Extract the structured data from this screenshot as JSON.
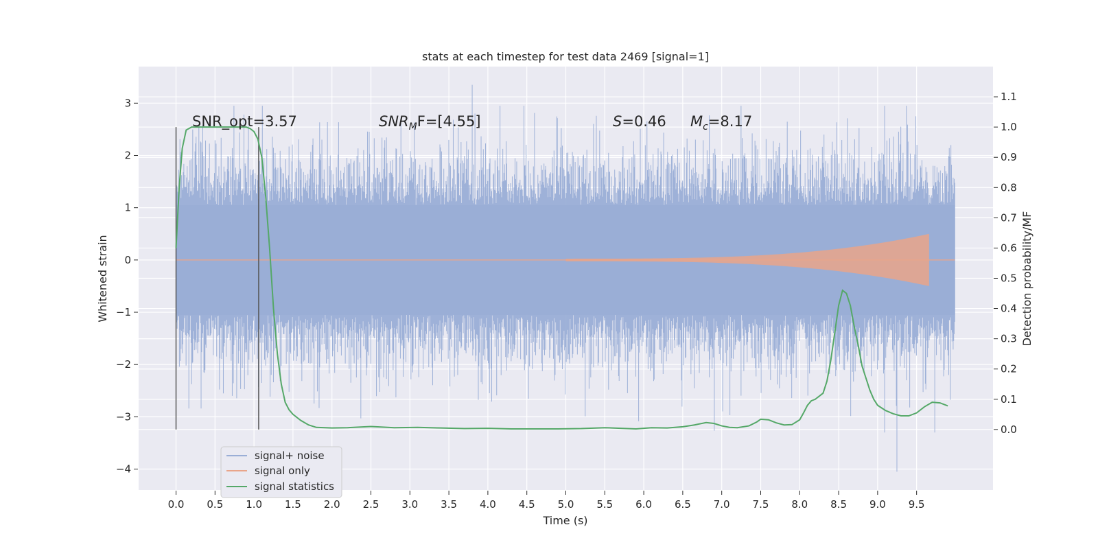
{
  "chart_data": {
    "type": "line",
    "title": "stats at each timestep for test data 2469 [signal=1]",
    "xlabel": "Time (s)",
    "ylabel": "Whitened strain",
    "y2label": "Detection probability/MF",
    "xlim": [
      -0.48,
      10.48
    ],
    "ylim": [
      -4.4,
      3.7
    ],
    "y2lim": [
      -0.2,
      1.2
    ],
    "xticks": [
      0.0,
      0.5,
      1.0,
      1.5,
      2.0,
      2.5,
      3.0,
      3.5,
      4.0,
      4.5,
      5.0,
      5.5,
      6.0,
      6.5,
      7.0,
      7.5,
      8.0,
      8.5,
      9.0,
      9.5
    ],
    "xtick_labels": [
      "0.0",
      "0.5",
      "1.0",
      "1.5",
      "2.0",
      "2.5",
      "3.0",
      "3.5",
      "4.0",
      "4.5",
      "5.0",
      "5.5",
      "6.0",
      "6.5",
      "7.0",
      "7.5",
      "8.0",
      "8.5",
      "9.0",
      "9.5"
    ],
    "yticks": [
      -4,
      -3,
      -2,
      -1,
      0,
      1,
      2,
      3
    ],
    "ytick_labels": [
      "−4",
      "−3",
      "−2",
      "−1",
      "0",
      "1",
      "2",
      "3"
    ],
    "y2ticks": [
      0.0,
      0.1,
      0.2,
      0.3,
      0.4,
      0.5,
      0.6,
      0.7,
      0.8,
      0.9,
      1.0,
      1.1
    ],
    "y2tick_labels": [
      "0.0",
      "0.1",
      "0.2",
      "0.3",
      "0.4",
      "0.5",
      "0.6",
      "0.7",
      "0.8",
      "0.9",
      "1.0",
      "1.1"
    ],
    "grid": true,
    "legend_position": "bottom-left",
    "colors": {
      "background": "#eaeaf2",
      "grid": "#ffffff",
      "noise": "#9aaed6",
      "signal": "#e9a58a",
      "statistics": "#55a868",
      "window_line": "#555555"
    },
    "series": [
      {
        "name": "signal+ noise",
        "axis": "left",
        "t_start": 0.0,
        "t_end": 9.99,
        "envelope_typical": [
          -1.6,
          1.6
        ],
        "envelope_peaks": [
          -4.05,
          3.35
        ]
      },
      {
        "name": "signal only",
        "axis": "left",
        "t_start": 0.0,
        "t_end": 9.99,
        "chirp_end_time": 9.66,
        "chirp_max_amplitude": 0.5
      },
      {
        "name": "signal statistics",
        "axis": "right",
        "x": [
          0.0,
          0.04,
          0.08,
          0.13,
          0.2,
          0.3,
          0.4,
          0.5,
          0.6,
          0.7,
          0.8,
          0.9,
          0.95,
          1.0,
          1.05,
          1.1,
          1.15,
          1.2,
          1.25,
          1.3,
          1.35,
          1.4,
          1.45,
          1.5,
          1.6,
          1.7,
          1.8,
          2.0,
          2.2,
          2.5,
          2.8,
          3.1,
          3.4,
          3.7,
          4.0,
          4.3,
          4.6,
          4.9,
          5.2,
          5.5,
          5.7,
          5.9,
          6.1,
          6.3,
          6.5,
          6.65,
          6.8,
          6.9,
          7.0,
          7.1,
          7.2,
          7.35,
          7.45,
          7.5,
          7.6,
          7.7,
          7.8,
          7.9,
          8.0,
          8.05,
          8.1,
          8.15,
          8.2,
          8.3,
          8.35,
          8.4,
          8.45,
          8.5,
          8.55,
          8.6,
          8.65,
          8.7,
          8.75,
          8.8,
          8.9,
          8.95,
          9.0,
          9.1,
          9.2,
          9.3,
          9.4,
          9.5,
          9.6,
          9.7,
          9.8,
          9.9
        ],
        "values": [
          0.6,
          0.8,
          0.93,
          0.99,
          1.0,
          1.0,
          1.0,
          1.0,
          1.0,
          1.0,
          1.0,
          1.0,
          0.995,
          0.985,
          0.96,
          0.9,
          0.77,
          0.6,
          0.4,
          0.25,
          0.15,
          0.09,
          0.065,
          0.05,
          0.03,
          0.015,
          0.007,
          0.005,
          0.006,
          0.01,
          0.006,
          0.007,
          0.005,
          0.003,
          0.004,
          0.002,
          0.002,
          0.002,
          0.003,
          0.006,
          0.004,
          0.002,
          0.006,
          0.005,
          0.009,
          0.015,
          0.023,
          0.02,
          0.012,
          0.007,
          0.006,
          0.012,
          0.025,
          0.034,
          0.032,
          0.022,
          0.015,
          0.016,
          0.032,
          0.055,
          0.08,
          0.095,
          0.1,
          0.12,
          0.16,
          0.23,
          0.32,
          0.41,
          0.46,
          0.45,
          0.41,
          0.34,
          0.28,
          0.21,
          0.13,
          0.1,
          0.08,
          0.063,
          0.052,
          0.045,
          0.045,
          0.055,
          0.075,
          0.09,
          0.088,
          0.078
        ]
      }
    ],
    "window_markers_x": [
      0.0,
      1.06
    ],
    "annotations": {
      "snr_opt": "SNR_opt=3.57",
      "snr_mf_main": "SNR",
      "snr_mf_sub": "M",
      "snr_mf_rest": "F=[4.55]",
      "s_var": "S",
      "s_rest": "=0.46",
      "mc_var": "M",
      "mc_sub": "c",
      "mc_rest": "=8.17"
    }
  }
}
